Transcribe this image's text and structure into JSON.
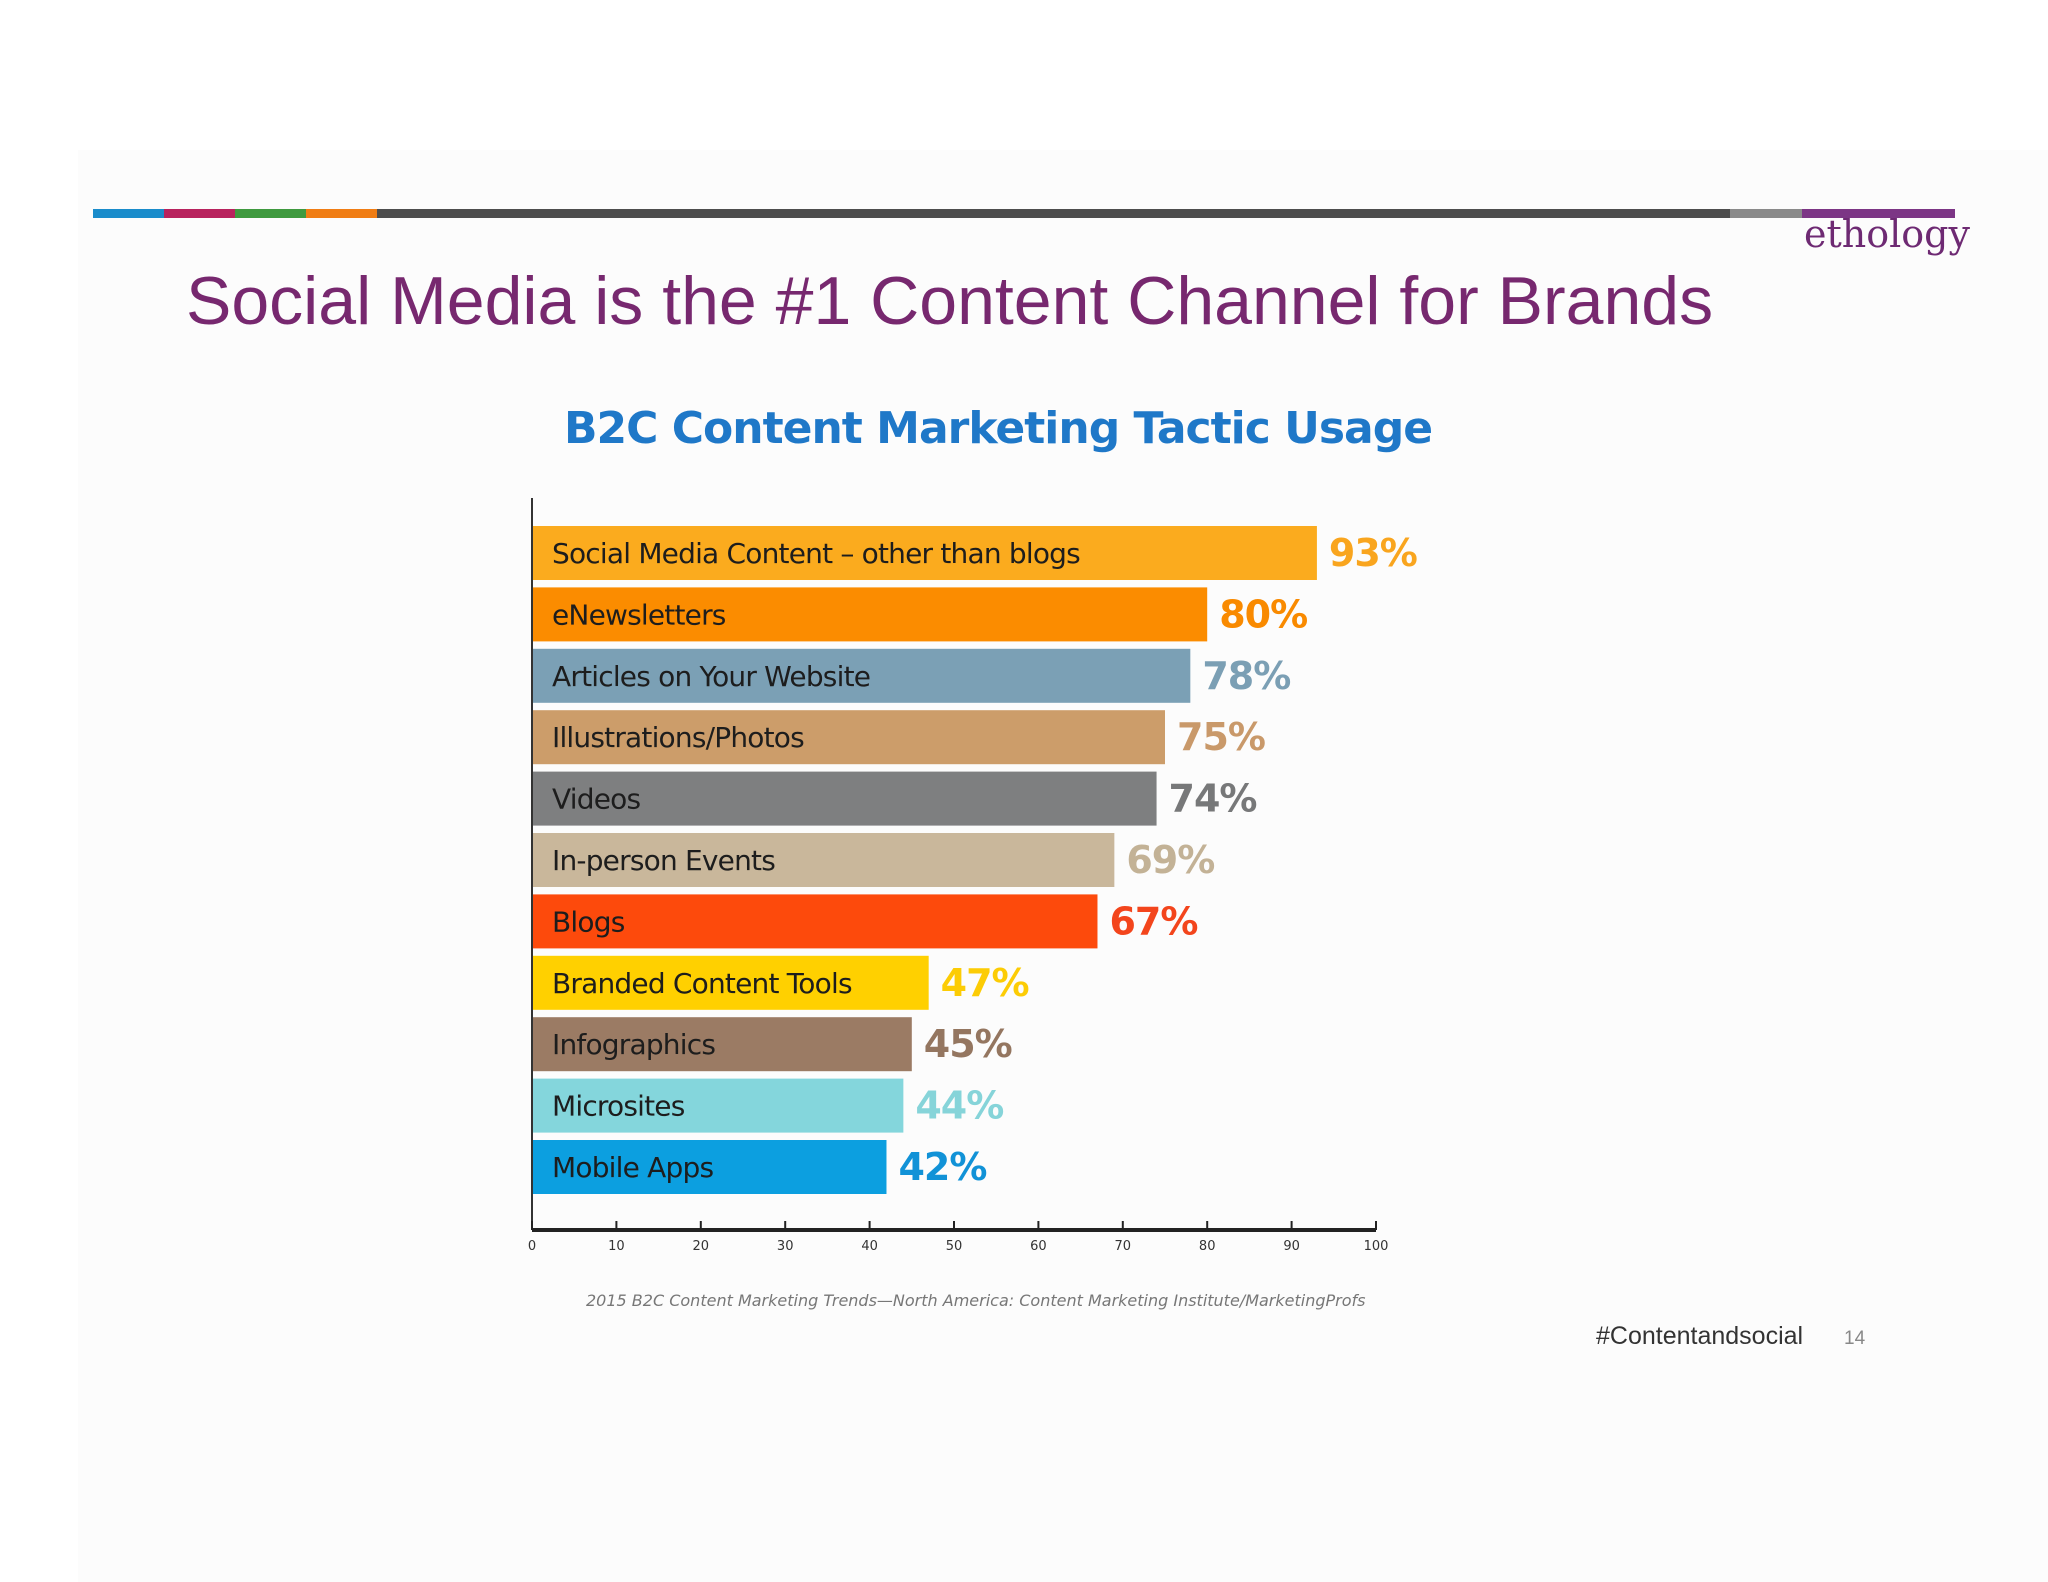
{
  "slide": {
    "title": "Social Media is the #1 Content Channel for Brands",
    "brand": "ethology",
    "hashtag": "#Contentandsocial",
    "page_number": "14",
    "rule_colors": [
      "#1a8ccb",
      "#b8235e",
      "#3f9a3f",
      "#f07d14",
      "#4d4d4d",
      "#8a8a8a",
      "#7c3585"
    ],
    "title_color": "#77286f"
  },
  "chart_data": {
    "type": "bar",
    "orientation": "horizontal",
    "title": "B2C Content Marketing Tactic Usage",
    "source": "2015 B2C Content Marketing Trends—North America: Content Marketing Institute/MarketingProfs",
    "categories": [
      "Social Media Content – other than blogs",
      "eNewsletters",
      "Articles on Your Website",
      "Illustrations/Photos",
      "Videos",
      "In-person Events",
      "Blogs",
      "Branded Content Tools",
      "Infographics",
      "Microsites",
      "Mobile Apps"
    ],
    "values": [
      93,
      80,
      78,
      75,
      74,
      69,
      67,
      47,
      45,
      44,
      42
    ],
    "value_labels": [
      "93%",
      "80%",
      "78%",
      "75%",
      "74%",
      "69%",
      "67%",
      "47%",
      "45%",
      "44%",
      "42%"
    ],
    "colors": [
      "#fbab1e",
      "#fb8c00",
      "#7ba0b5",
      "#cc9d6a",
      "#7e7f80",
      "#c9b79b",
      "#fd4a0c",
      "#ffd000",
      "#9b7b64",
      "#84d6dc",
      "#0c9fe0"
    ],
    "label_colors": [
      "#f9a51e",
      "#f98a00",
      "#7b9fb4",
      "#c9996a",
      "#777879",
      "#c3b296",
      "#f3451c",
      "#fccc05",
      "#947660",
      "#86d4d9",
      "#1192d7"
    ],
    "x_ticks": [
      0,
      10,
      20,
      30,
      40,
      50,
      60,
      70,
      80,
      90,
      100
    ],
    "xlim": [
      0,
      100
    ],
    "grid": false
  }
}
